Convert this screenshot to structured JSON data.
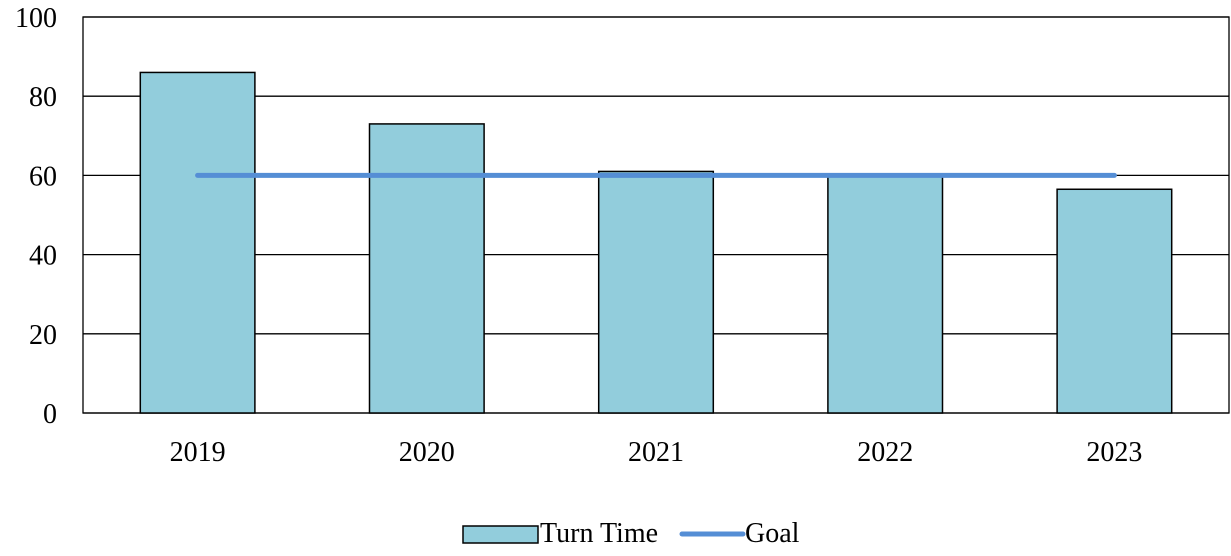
{
  "chart_data": {
    "type": "bar",
    "categories": [
      "2019",
      "2020",
      "2021",
      "2022",
      "2023"
    ],
    "series": [
      {
        "name": "Turn Time",
        "type": "bar",
        "values": [
          86,
          73,
          61,
          60,
          56.5
        ]
      },
      {
        "name": "Goal",
        "type": "line",
        "values": [
          60,
          60,
          60,
          60,
          60
        ]
      }
    ],
    "ylim": [
      0,
      100
    ],
    "yticks": [
      0,
      20,
      40,
      60,
      80,
      100
    ],
    "grid": true,
    "legend": "bottom",
    "colors": {
      "bar_fill": "#92CDDC",
      "bar_stroke": "#000000",
      "goal_line": "#558ED5",
      "grid": "#000000"
    }
  }
}
